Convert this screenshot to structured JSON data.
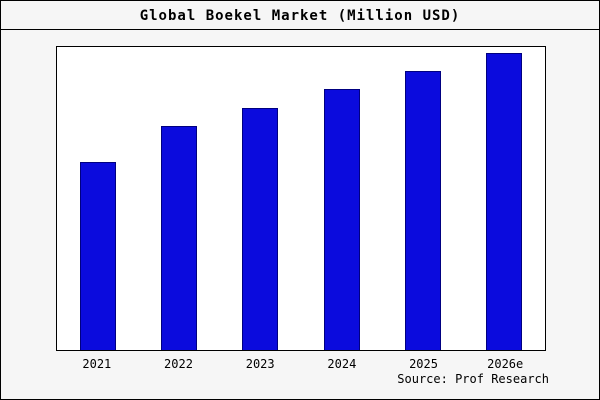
{
  "title": "Global Boekel Market (Million USD)",
  "source": "Source: Prof Research",
  "colors": {
    "bar_fill": "#0b0bdd",
    "bar_border": "#000080",
    "plot_background": "#ffffff",
    "figure_background": "#f6f6f6",
    "axis_line": "#000000"
  },
  "chart_data": {
    "type": "bar",
    "title": "Global Boekel Market (Million USD)",
    "categories": [
      "2021",
      "2022",
      "2023",
      "2024",
      "2025",
      "2026e"
    ],
    "values": [
      62,
      74,
      80,
      86,
      92,
      98
    ],
    "xlabel": "",
    "ylabel": "",
    "ylim": [
      0,
      100
    ],
    "grid": false,
    "legend_position": "none",
    "source_credit": "Source: Prof Research"
  }
}
